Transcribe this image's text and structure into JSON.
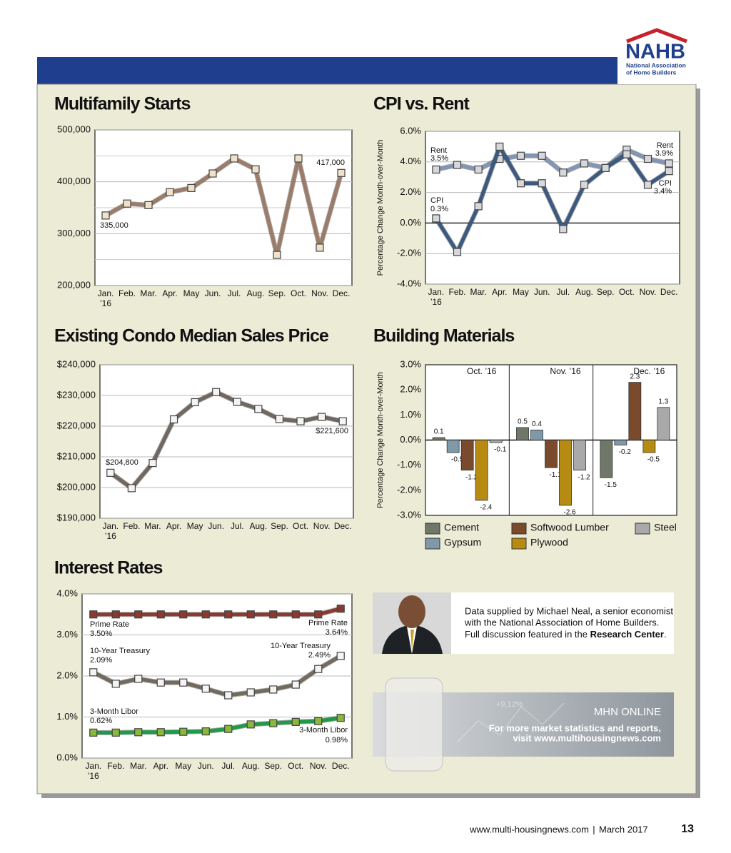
{
  "header": {
    "logo": "NAHB",
    "org_line1": "National Association",
    "org_line2": "of Home Builders"
  },
  "chart_data": [
    {
      "type": "line",
      "title": "Multifamily Starts",
      "categories": [
        "Jan.",
        "Feb.",
        "Mar.",
        "Apr.",
        "May",
        "Jun.",
        "Jul.",
        "Aug.",
        "Sep.",
        "Oct.",
        "Nov.",
        "Dec."
      ],
      "year_label": "’16",
      "values": [
        335000,
        358000,
        355000,
        380000,
        388000,
        416000,
        445000,
        424000,
        259000,
        445000,
        273000,
        417000
      ],
      "value_labels": [
        "335,000",
        null,
        null,
        null,
        null,
        null,
        null,
        null,
        null,
        null,
        null,
        "417,000"
      ],
      "color": "#9c7c68",
      "marker_color": "#efe2c8",
      "ylim": [
        200000,
        500000
      ],
      "yticks": [
        {
          "value": 200000,
          "label": "200,000"
        },
        {
          "value": 300000,
          "label": "300,000"
        },
        {
          "value": 400000,
          "label": "400,000"
        },
        {
          "value": 500000,
          "label": "500,000"
        }
      ],
      "yminor": [
        250000,
        350000,
        450000
      ],
      "grid": true
    },
    {
      "type": "line",
      "title": "CPI vs. Rent",
      "y_label": "Percentage Change Month-over-Month",
      "categories": [
        "Jan.",
        "Feb.",
        "Mar.",
        "Apr.",
        "May",
        "Jun.",
        "Jul.",
        "Aug.",
        "Sep.",
        "Oct.",
        "Nov.",
        "Dec."
      ],
      "year_label": "’16",
      "series": [
        {
          "name": "Rent",
          "color": "#8196b6",
          "marker_color": "#d6d8dc",
          "values": [
            3.5,
            3.8,
            3.5,
            4.2,
            4.4,
            4.4,
            3.3,
            3.9,
            3.6,
            4.8,
            4.2,
            3.9
          ],
          "value_labels": [
            "3.5%",
            null,
            null,
            null,
            null,
            null,
            null,
            null,
            null,
            null,
            null,
            "3.9%"
          ]
        },
        {
          "name": "CPI",
          "color": "#3c5a80",
          "marker_color": "#d6d8dc",
          "values": [
            0.3,
            -1.9,
            1.1,
            5.0,
            2.6,
            2.6,
            -0.4,
            2.5,
            3.6,
            4.5,
            2.5,
            3.4
          ],
          "value_labels": [
            "0.3%",
            null,
            null,
            null,
            null,
            null,
            null,
            null,
            null,
            null,
            null,
            "3.4%"
          ]
        }
      ],
      "ylim": [
        -4,
        6
      ],
      "yticks": [
        {
          "value": -4,
          "label": "-4.0%"
        },
        {
          "value": -2,
          "label": "-2.0%"
        },
        {
          "value": 0,
          "label": "0.0%"
        },
        {
          "value": 2,
          "label": "2.0%"
        },
        {
          "value": 4,
          "label": "4.0%"
        },
        {
          "value": 6,
          "label": "6.0%"
        }
      ],
      "grid": true
    },
    {
      "type": "line",
      "title": "Existing Condo Median Sales Price",
      "categories": [
        "Jan.",
        "Feb.",
        "Mar.",
        "Apr.",
        "May",
        "Jun.",
        "Jul.",
        "Aug.",
        "Sep.",
        "Oct.",
        "Nov.",
        "Dec."
      ],
      "year_label": "’16",
      "values": [
        204800,
        199800,
        208000,
        222200,
        227800,
        231100,
        227900,
        225600,
        222300,
        221600,
        223000,
        221600
      ],
      "value_labels": [
        "$204,800",
        null,
        null,
        null,
        null,
        null,
        null,
        null,
        null,
        null,
        null,
        "$221,600"
      ],
      "color": "#706860",
      "marker_color": "#f4f4f4",
      "ylim": [
        190000,
        240000
      ],
      "yticks": [
        {
          "value": 190000,
          "label": "$190,000"
        },
        {
          "value": 200000,
          "label": "$200,000"
        },
        {
          "value": 210000,
          "label": "$210,000"
        },
        {
          "value": 220000,
          "label": "$220,000"
        },
        {
          "value": 230000,
          "label": "$230,000"
        },
        {
          "value": 240000,
          "label": "$240,000"
        }
      ],
      "grid": true
    },
    {
      "type": "bar",
      "title": "Building Materials",
      "y_label": "Percentage Change Month-over-Month",
      "categories": [
        "Oct. ’16",
        "Nov. ’16",
        "Dec. ’16"
      ],
      "series": [
        {
          "name": "Cement",
          "color": "#6f7868",
          "values": [
            0.1,
            0.5,
            -1.5
          ]
        },
        {
          "name": "Gypsum",
          "color": "#7f99a8",
          "values": [
            -0.5,
            0.4,
            -0.2
          ]
        },
        {
          "name": "Softwood Lumber",
          "color": "#7a4a2c",
          "values": [
            -1.2,
            -1.1,
            2.3
          ]
        },
        {
          "name": "Plywood",
          "color": "#b78a12",
          "values": [
            -2.4,
            -2.6,
            -0.5
          ]
        },
        {
          "name": "Steel",
          "color": "#a9a9a9",
          "values": [
            -0.1,
            -1.2,
            1.3
          ]
        }
      ],
      "ylim": [
        -3,
        3
      ],
      "yticks": [
        {
          "value": -3,
          "label": "-3.0%"
        },
        {
          "value": -2,
          "label": "-2.0%"
        },
        {
          "value": -1,
          "label": "-1.0%"
        },
        {
          "value": 0,
          "label": "0.0%"
        },
        {
          "value": 1,
          "label": "1.0%"
        },
        {
          "value": 2,
          "label": "2.0%"
        },
        {
          "value": 3,
          "label": "3.0%"
        }
      ],
      "grid": false,
      "legend": "bottom"
    },
    {
      "type": "line",
      "title": "Interest Rates",
      "categories": [
        "Jan.",
        "Feb.",
        "Mar.",
        "Apr.",
        "May",
        "Jun.",
        "Jul.",
        "Aug.",
        "Sep.",
        "Oct.",
        "Nov.",
        "Dec."
      ],
      "year_label": "’16",
      "series": [
        {
          "name": "Prime Rate",
          "color": "#8a3a2e",
          "marker_color": "#8a3a2e",
          "values": [
            3.5,
            3.5,
            3.5,
            3.5,
            3.5,
            3.5,
            3.5,
            3.5,
            3.5,
            3.5,
            3.5,
            3.64
          ],
          "value_labels": [
            "3.50%",
            null,
            null,
            null,
            null,
            null,
            null,
            null,
            null,
            null,
            null,
            "3.64%"
          ]
        },
        {
          "name": "10-Year Treasury",
          "color": "#736a5e",
          "marker_color": "#f4f4f4",
          "values": [
            2.09,
            1.81,
            1.93,
            1.84,
            1.84,
            1.69,
            1.53,
            1.6,
            1.67,
            1.79,
            2.17,
            2.49
          ],
          "value_labels": [
            "2.09%",
            null,
            null,
            null,
            null,
            null,
            null,
            null,
            null,
            null,
            null,
            "2.49%"
          ]
        },
        {
          "name": "3-Month Libor",
          "color": "#1e9a48",
          "marker_color": "#8ab83a",
          "values": [
            0.62,
            0.62,
            0.63,
            0.63,
            0.64,
            0.65,
            0.71,
            0.82,
            0.85,
            0.88,
            0.9,
            0.98
          ],
          "value_labels": [
            "0.62%",
            null,
            null,
            null,
            null,
            null,
            null,
            null,
            null,
            null,
            null,
            "0.98%"
          ]
        }
      ],
      "ylim": [
        0,
        4
      ],
      "yticks": [
        {
          "value": 0,
          "label": "0.0%"
        },
        {
          "value": 1,
          "label": "1.0%"
        },
        {
          "value": 2,
          "label": "2.0%"
        },
        {
          "value": 3,
          "label": "3.0%"
        },
        {
          "value": 4,
          "label": "4.0%"
        }
      ],
      "grid": true
    }
  ],
  "info": {
    "line1": "Data supplied by Michael Neal, a senior economist",
    "line2": "with the National Association of Home Builders.",
    "line3": "Full discussion featured in the",
    "bold": "Research Center",
    "end": "."
  },
  "promo": {
    "deco": "+9,12%",
    "title": "MHN ONLINE",
    "line1": "For more market statistics and reports,",
    "line2": "visit www.multihousingnews.com"
  },
  "footer": {
    "site": "www.multi-housingnews.com",
    "sep": "|",
    "date": "March 2017",
    "page": "13"
  }
}
